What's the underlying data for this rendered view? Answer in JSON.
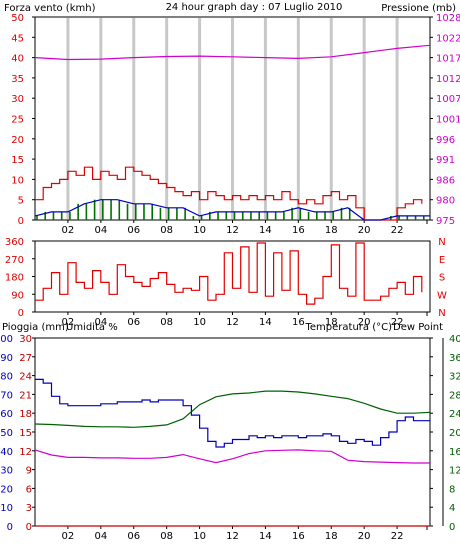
{
  "colors": {
    "background": "#ffffff",
    "plot_background": "#ffffff",
    "grid": "#c8c8c8",
    "frame": "#000000",
    "wind": "#e00000",
    "gust": "#e00000",
    "wind_avg": "#007000",
    "direction": "#e00000",
    "pressure": "#d000d0",
    "rain": "#c00000",
    "humidity": "#0000c0",
    "temperature": "#006000",
    "dew_point": "#d000d0"
  },
  "header": {
    "wind_label": "Forza vento (kmh)",
    "title": "24 hour graph day : 07 Luglio 2010",
    "pressure_label": "Pressione (mb)"
  },
  "bottom_header": {
    "rain_label": "Pioggia (mm)",
    "humidity_label": "Umidita %",
    "temperature_label": "Temperatura (°C)",
    "dewpoint_label": "Dew Point"
  },
  "chart_data": [
    {
      "type": "line",
      "panel": "wind-pressure",
      "x_ticks": [
        "02",
        "04",
        "06",
        "08",
        "10",
        "12",
        "14",
        "16",
        "18",
        "20",
        "22"
      ],
      "xlim": [
        0,
        24
      ],
      "grid": true,
      "left_axis": {
        "label": "Forza vento (kmh)",
        "ticks": [
          "0",
          "5",
          "10",
          "15",
          "20",
          "25",
          "30",
          "35",
          "40",
          "45",
          "50"
        ],
        "ylim": [
          0,
          50
        ]
      },
      "right_axis": {
        "label": "Pressione (mb)",
        "ticks": [
          "975",
          "980",
          "986",
          "991",
          "996",
          "1001",
          "1007",
          "1012",
          "1017",
          "1022",
          "1028"
        ],
        "ylim": [
          975,
          1028
        ]
      },
      "series": [
        {
          "name": "gust",
          "axis": "left",
          "x": [
            0.0,
            0.5,
            1.0,
            1.5,
            2.0,
            2.5,
            3.0,
            3.5,
            4.0,
            4.5,
            5.0,
            5.5,
            6.0,
            6.5,
            7.0,
            7.5,
            8.0,
            8.5,
            9.0,
            9.5,
            10.0,
            10.5,
            11.0,
            11.5,
            12.0,
            12.5,
            13.0,
            13.5,
            14.0,
            14.5,
            15.0,
            15.5,
            16.0,
            16.5,
            17.0,
            17.5,
            18.0,
            18.5,
            19.0,
            19.5,
            20.0,
            20.5,
            21.0,
            21.5,
            22.0,
            22.5,
            23.0,
            23.5
          ],
          "values": [
            5,
            8,
            9,
            10,
            12,
            11,
            13,
            10,
            12,
            11,
            10,
            13,
            12,
            11,
            10,
            9,
            8,
            7,
            6,
            7,
            5,
            7,
            6,
            5,
            6,
            5,
            6,
            5,
            6,
            5,
            7,
            5,
            4,
            5,
            4,
            6,
            7,
            5,
            6,
            3,
            0,
            0,
            0,
            0,
            3,
            4,
            5,
            4
          ]
        },
        {
          "name": "average",
          "axis": "left",
          "x": [
            0.0,
            1.0,
            2.0,
            3.0,
            4.0,
            5.0,
            6.0,
            7.0,
            8.0,
            9.0,
            10.0,
            11.0,
            12.0,
            13.0,
            14.0,
            15.0,
            16.0,
            17.0,
            18.0,
            19.0,
            20.0,
            21.0,
            22.0,
            23.0,
            24.0
          ],
          "values": [
            1,
            2,
            2,
            4,
            5,
            5,
            4,
            4,
            3,
            3,
            1,
            2,
            2,
            2,
            2,
            2,
            3,
            2,
            2,
            3,
            0,
            0,
            1,
            1,
            1
          ]
        },
        {
          "name": "pressure",
          "axis": "right",
          "x": [
            0,
            2,
            4,
            6,
            8,
            10,
            12,
            14,
            16,
            18,
            20,
            22,
            24
          ],
          "values": [
            1017.4,
            1016.9,
            1017.0,
            1017.4,
            1017.7,
            1017.8,
            1017.6,
            1017.4,
            1017.2,
            1017.6,
            1018.7,
            1019.8,
            1020.6
          ]
        }
      ]
    },
    {
      "type": "line",
      "panel": "wind-direction",
      "x_ticks": [
        "02",
        "04",
        "06",
        "08",
        "10",
        "12",
        "14",
        "16",
        "18",
        "20",
        "22"
      ],
      "xlim": [
        0,
        24
      ],
      "grid": false,
      "left_axis": {
        "ticks": [
          "0",
          "90",
          "180",
          "270",
          "360"
        ],
        "ylim": [
          0,
          360
        ]
      },
      "right_axis": {
        "ticks": [
          "N",
          "W",
          "S",
          "E",
          "N"
        ]
      },
      "series": [
        {
          "name": "direction",
          "x": [
            0.0,
            0.5,
            1.0,
            1.5,
            2.0,
            2.5,
            3.0,
            3.5,
            4.0,
            4.5,
            5.0,
            5.5,
            6.0,
            6.5,
            7.0,
            7.5,
            8.0,
            8.5,
            9.0,
            9.5,
            10.0,
            10.5,
            11.0,
            11.5,
            12.0,
            12.5,
            13.0,
            13.5,
            14.0,
            14.5,
            15.0,
            15.5,
            16.0,
            16.5,
            17.0,
            17.5,
            18.0,
            18.5,
            19.0,
            19.5,
            20.0,
            20.5,
            21.0,
            21.5,
            22.0,
            22.5,
            23.0,
            23.5
          ],
          "values": [
            60,
            120,
            200,
            90,
            250,
            150,
            120,
            210,
            150,
            90,
            240,
            180,
            150,
            130,
            170,
            200,
            140,
            100,
            120,
            110,
            180,
            60,
            90,
            300,
            120,
            330,
            100,
            350,
            80,
            300,
            110,
            310,
            90,
            40,
            70,
            180,
            340,
            120,
            80,
            350,
            60,
            60,
            80,
            120,
            150,
            90,
            180,
            100
          ]
        }
      ]
    },
    {
      "type": "line",
      "panel": "temp-humidity-rain",
      "x_ticks": [
        "02",
        "04",
        "06",
        "08",
        "10",
        "12",
        "14",
        "16",
        "18",
        "20",
        "22"
      ],
      "xlim": [
        0,
        24
      ],
      "grid": false,
      "humidity_axis": {
        "label": "Umidita %",
        "ticks": [
          "0",
          "10",
          "20",
          "30",
          "40",
          "50",
          "60",
          "70",
          "80",
          "90",
          "100"
        ],
        "ylim": [
          0,
          100
        ]
      },
      "rain_axis": {
        "label": "Pioggia (mm)",
        "ticks": [
          "0",
          "3",
          "6",
          "9",
          "12",
          "15",
          "18",
          "21",
          "24",
          "27",
          "30"
        ],
        "ylim": [
          0,
          30
        ]
      },
      "temperature_axis": {
        "label": "Temperatura (°C)",
        "ticks": [
          "0",
          "4",
          "8",
          "12",
          "16",
          "20",
          "24",
          "28",
          "32",
          "36",
          "40"
        ],
        "ylim": [
          0,
          40
        ]
      },
      "series": [
        {
          "name": "Umidita %",
          "axis": "humidity",
          "x": [
            0.0,
            0.5,
            1.0,
            1.5,
            2.0,
            2.5,
            3.0,
            3.5,
            4.0,
            4.5,
            5.0,
            5.5,
            6.0,
            6.5,
            7.0,
            7.5,
            8.0,
            8.5,
            9.0,
            9.5,
            10.0,
            10.5,
            11.0,
            11.5,
            12.0,
            12.5,
            13.0,
            13.5,
            14.0,
            14.5,
            15.0,
            15.5,
            16.0,
            16.5,
            17.0,
            17.5,
            18.0,
            18.5,
            19.0,
            19.5,
            20.0,
            20.5,
            21.0,
            21.5,
            22.0,
            22.5,
            23.0,
            23.5,
            24.0
          ],
          "values": [
            78,
            76,
            69,
            65,
            64,
            64,
            64,
            64,
            65,
            65,
            66,
            66,
            66,
            67,
            66,
            67,
            67,
            67,
            64,
            59,
            52,
            45,
            42,
            44,
            46,
            46,
            48,
            47,
            48,
            47,
            48,
            48,
            47,
            48,
            48,
            49,
            48,
            45,
            44,
            46,
            45,
            43,
            47,
            50,
            56,
            58,
            56,
            56,
            56
          ]
        },
        {
          "name": "Temperatura (°C)",
          "axis": "temperature",
          "x": [
            0,
            1,
            2,
            3,
            4,
            5,
            6,
            7,
            8,
            9,
            10,
            11,
            12,
            13,
            14,
            15,
            16,
            17,
            18,
            19,
            20,
            21,
            22,
            23,
            24
          ],
          "values": [
            21.7,
            21.6,
            21.4,
            21.2,
            21.1,
            21.1,
            21.0,
            21.2,
            21.5,
            22.8,
            25.8,
            27.5,
            28.1,
            28.3,
            28.7,
            28.7,
            28.5,
            28.1,
            27.6,
            27.1,
            26.1,
            24.9,
            24.0,
            24.0,
            24.2
          ]
        },
        {
          "name": "Dew Point",
          "axis": "temperature",
          "x": [
            0,
            1,
            2,
            3,
            4,
            5,
            6,
            7,
            8,
            9,
            10,
            11,
            12,
            13,
            14,
            15,
            16,
            17,
            18,
            19,
            20,
            21,
            22,
            23,
            24
          ],
          "values": [
            16.2,
            15.1,
            14.6,
            14.6,
            14.5,
            14.5,
            14.4,
            14.4,
            14.6,
            15.2,
            14.3,
            13.5,
            14.3,
            15.4,
            16.0,
            16.1,
            16.2,
            16.0,
            15.9,
            14.0,
            13.7,
            13.6,
            13.5,
            13.4,
            13.4
          ]
        },
        {
          "name": "Pioggia (mm)",
          "axis": "rain",
          "x": [
            0,
            24
          ],
          "values": [
            0,
            0
          ]
        }
      ]
    }
  ]
}
